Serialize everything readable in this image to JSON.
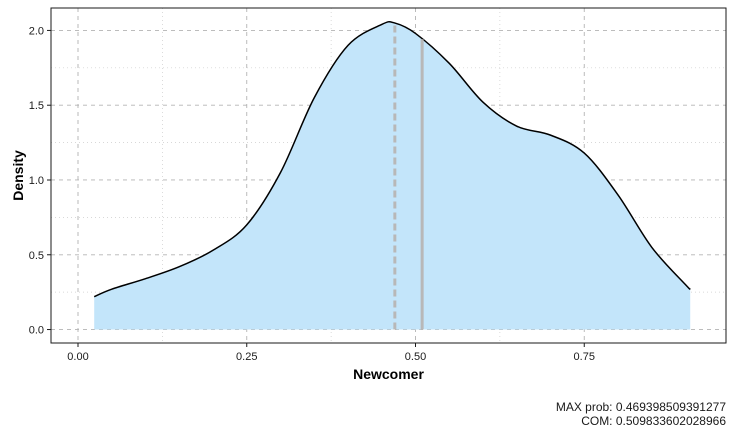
{
  "chart_data": {
    "type": "area",
    "xlabel": "Newcomer",
    "ylabel": "Density",
    "xlim": [
      -0.04,
      0.96
    ],
    "ylim": [
      -0.09,
      2.15
    ],
    "x_ticks": [
      0.0,
      0.25,
      0.5,
      0.75
    ],
    "x_tick_labels": [
      "0.00",
      "0.25",
      "0.50",
      "0.75"
    ],
    "y_ticks": [
      0.0,
      0.5,
      1.0,
      1.5,
      2.0
    ],
    "y_tick_labels": [
      "0.0",
      "0.5",
      "1.0",
      "1.5",
      "2.0"
    ],
    "grid": true,
    "fill_color": "#c3e5fa",
    "line_color": "#000000",
    "marker_color": "#b8b8b8",
    "series": [
      {
        "x": [
          0.024,
          0.05,
          0.1,
          0.15,
          0.2,
          0.25,
          0.3,
          0.35,
          0.4,
          0.45,
          0.469,
          0.5,
          0.55,
          0.6,
          0.65,
          0.7,
          0.75,
          0.8,
          0.85,
          0.9,
          0.907
        ],
        "y": [
          0.22,
          0.27,
          0.34,
          0.42,
          0.53,
          0.7,
          1.05,
          1.55,
          1.9,
          2.04,
          2.05,
          1.98,
          1.78,
          1.52,
          1.36,
          1.3,
          1.18,
          0.9,
          0.55,
          0.3,
          0.27
        ]
      }
    ],
    "vlines": [
      {
        "label": "MAX prob",
        "x": 0.469398509391277,
        "style": "dashed"
      },
      {
        "label": "COM",
        "x": 0.509833602028966,
        "style": "solid"
      }
    ]
  },
  "caption": {
    "max_prob_label": "MAX prob:",
    "max_prob_value": "0.469398509391277",
    "com_label": "COM:",
    "com_value": "0.509833602028966"
  }
}
